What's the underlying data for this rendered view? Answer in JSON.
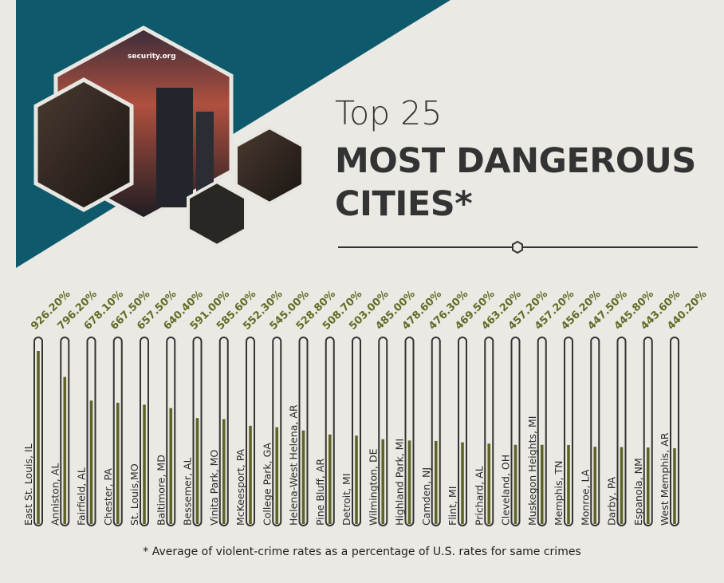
{
  "header": {
    "logo": "security.org",
    "title_line1": "Top 25",
    "title_line2": "MOST DANGEROUS",
    "title_line3": "CITIES*"
  },
  "footnote": "* Average of violent-crime rates as a percentage of U.S. rates for same crimes",
  "colors": {
    "teal": "#0e5a6c",
    "fill": "#5f6426",
    "label": "#636b25",
    "tube": "#333333"
  },
  "chart_data": {
    "type": "bar",
    "title": "Top 25 Most Dangerous Cities",
    "ylabel": "Violent-crime rate as % of U.S. rate",
    "categories": [
      "East St. Louis, IL",
      "Anniston, AL",
      "Fairfield, AL",
      "Chester, PA",
      "St. Louis,MO",
      "Baltimore, MD",
      "Bessemer, AL",
      "Vinita Park, MO",
      "McKeesport, PA",
      "College Park, GA",
      "Helena-West Helena, AR",
      "Pine Bluff, AR",
      "Detroit, MI",
      "Wilmington, DE",
      "Highland Park, MI",
      "Camden, NJ",
      "Flint, MI",
      "Prichard, AL",
      "Cleveland, OH",
      "Muskegon Heights, MI",
      "Memphis, TN",
      "Monroe, LA",
      "Darby, PA",
      "Espanola, NM",
      "West Memphis, AR"
    ],
    "values": [
      926.2,
      796.2,
      678.1,
      667.5,
      657.5,
      640.4,
      591.0,
      585.6,
      552.3,
      545.0,
      528.8,
      508.7,
      503.0,
      485.0,
      478.6,
      476.3,
      469.5,
      463.2,
      457.2,
      457.2,
      456.2,
      447.5,
      445.8,
      443.6,
      440.2
    ],
    "value_labels": [
      "926.20%",
      "796.20%",
      "678.10%",
      "667.50%",
      "657.50%",
      "640.40%",
      "591.00%",
      "585.60%",
      "552.30%",
      "545.00%",
      "528.80%",
      "508.70%",
      "503.00%",
      "485.00%",
      "478.60%",
      "476.30%",
      "469.50%",
      "463.20%",
      "457.20%",
      "457.20%",
      "456.20%",
      "447.50%",
      "445.80%",
      "443.60%",
      "440.20%"
    ]
  }
}
